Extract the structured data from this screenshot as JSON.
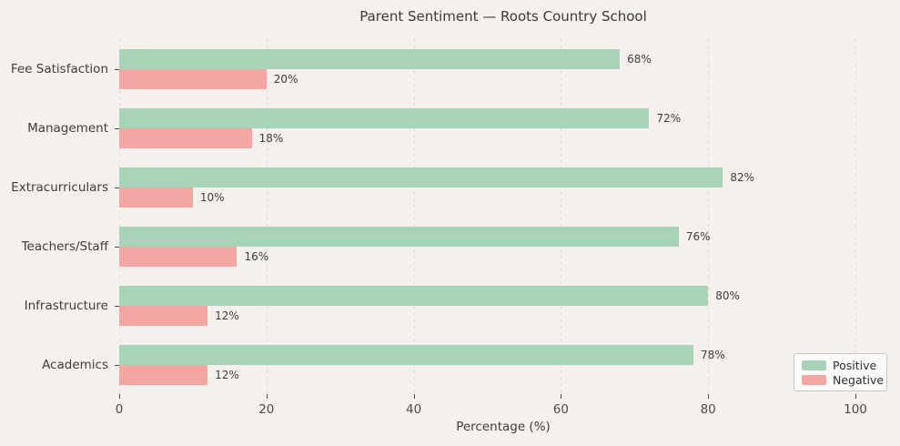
{
  "chart_data": {
    "type": "bar",
    "orientation": "horizontal",
    "title": "Parent Sentiment — Roots Country School",
    "xlabel": "Percentage (%)",
    "categories": [
      "Fee Satisfaction",
      "Management",
      "Extracurriculars",
      "Teachers/Staff",
      "Infrastructure",
      "Academics"
    ],
    "series": [
      {
        "name": "Positive",
        "color": "#a8d3b8",
        "values": [
          68,
          72,
          82,
          76,
          80,
          78
        ]
      },
      {
        "name": "Negative",
        "color": "#f4a7a2",
        "values": [
          20,
          18,
          10,
          16,
          12,
          12
        ]
      }
    ],
    "value_label_format": "{v}%",
    "xlim": [
      0,
      100
    ],
    "xticks": [
      0,
      20,
      40,
      60,
      80,
      100
    ],
    "grid": "dashed-vertical",
    "legend_position": "lower-right"
  },
  "colors": {
    "background": "#f5f0eb",
    "grid": "#ddd8d2",
    "text": "#3d3d3d",
    "tick_text": "#4a4a4a",
    "legend_bg": "#fcfbf9",
    "legend_border": "#c9c9c9"
  }
}
